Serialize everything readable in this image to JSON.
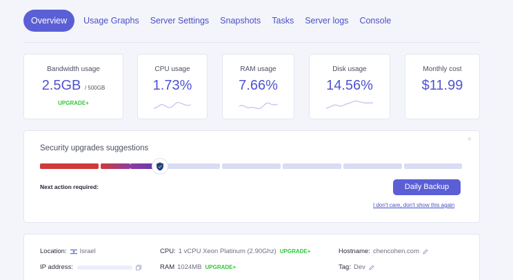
{
  "tabs": [
    {
      "label": "Overview",
      "active": true
    },
    {
      "label": "Usage Graphs"
    },
    {
      "label": "Server Settings"
    },
    {
      "label": "Snapshots"
    },
    {
      "label": "Tasks"
    },
    {
      "label": "Server logs"
    },
    {
      "label": "Console"
    }
  ],
  "stats": {
    "bandwidth": {
      "label": "Bandwidth usage",
      "value": "2.5GB",
      "total": "/ 500GB",
      "upgrade": "UPGRADE+"
    },
    "cpu": {
      "label": "CPU usage",
      "value": "1.73%"
    },
    "ram": {
      "label": "RAM usage",
      "value": "7.66%"
    },
    "disk": {
      "label": "Disk usage",
      "value": "14.56%"
    },
    "cost": {
      "label": "Monthly cost",
      "value": "$11.99"
    }
  },
  "security": {
    "title": "Security upgrades suggestions",
    "close": "×",
    "progress_segments_total": 7,
    "progress_segments_done": 2.5,
    "next_action_label": "Next action required:",
    "action_button": "Daily Backup",
    "dismiss_link": "I don't care, don't show this again"
  },
  "info": {
    "location_label": "Location:",
    "location_value": "Israel",
    "ip_label": "IP address:",
    "cpu_label": "CPU:",
    "cpu_value": "1 vCPU Xeon Platinum (2.90Ghz)",
    "cpu_upgrade": "UPGRADE+",
    "ram_label": "RAM",
    "ram_value": "1024MB",
    "ram_upgrade": "UPGRADE+",
    "hostname_label": "Hostname:",
    "hostname_value": "chencohen.com",
    "tag_label": "Tag:",
    "tag_value": "Dev"
  },
  "colors": {
    "accent": "#5b5fd6",
    "upgrade_green": "#34c53a",
    "progress_red": "#cf3a3a",
    "progress_empty": "#d9dcf3"
  },
  "icons": {
    "shield": "shield-check-icon",
    "edit": "pencil-icon",
    "copy": "copy-icon",
    "flag": "israel-flag-icon"
  }
}
